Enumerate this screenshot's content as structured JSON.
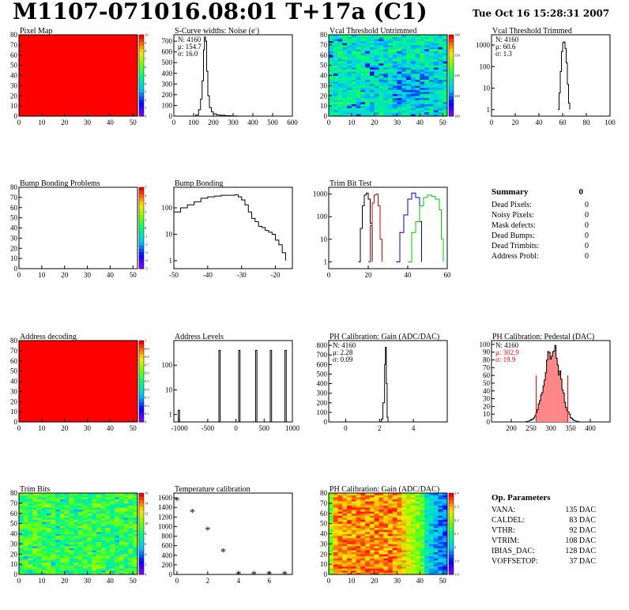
{
  "header": {
    "title": "M1107-071016.08:01 T+17a (C1)",
    "timestamp": "Tue Oct 16 15:28:31 2007"
  },
  "palette": {
    "red": "#ff0000",
    "line": "#000000",
    "trim_colors": [
      "#000000",
      "#cc0000",
      "#0000cc",
      "#00cc00"
    ],
    "stats_red": "#ff0000"
  },
  "chart_data": [
    {
      "id": "pixel-map",
      "type": "heatmap",
      "title": "Pixel Map",
      "fill": "uniform-red",
      "xlim": [
        0,
        52
      ],
      "ylim": [
        0,
        80
      ],
      "xticks": [
        0,
        10,
        20,
        30,
        40,
        50
      ],
      "yticks": [
        0,
        10,
        20,
        30,
        40,
        50,
        60,
        70,
        80
      ],
      "zticks": [
        "0",
        "1",
        "2",
        "3",
        "4",
        "5",
        "6",
        "7",
        "8",
        "9",
        "10"
      ]
    },
    {
      "id": "scurve-widths",
      "type": "histogram",
      "title": "S-Curve widths: Noise (e",
      "title_sup": "-",
      "title_end": ")",
      "xlim": [
        0,
        600
      ],
      "ylim": [
        0,
        760
      ],
      "xticks": [
        0,
        100,
        200,
        300,
        400,
        500,
        600
      ],
      "yticks": [
        0,
        100,
        200,
        300,
        400,
        500,
        600,
        700
      ],
      "stats": [
        "N: 4160",
        "μ: 154.7",
        "σ: 16.0"
      ],
      "points": [
        [
          90,
          0
        ],
        [
          110,
          10
        ],
        [
          125,
          60
        ],
        [
          135,
          160
        ],
        [
          143,
          330
        ],
        [
          150,
          620
        ],
        [
          155,
          740
        ],
        [
          160,
          700
        ],
        [
          166,
          420
        ],
        [
          172,
          190
        ],
        [
          180,
          80
        ],
        [
          190,
          40
        ],
        [
          200,
          22
        ],
        [
          215,
          12
        ],
        [
          235,
          8
        ],
        [
          260,
          5
        ],
        [
          290,
          2
        ],
        [
          320,
          0
        ]
      ]
    },
    {
      "id": "vcal-untrimmed",
      "type": "heatmap",
      "title": "Vcal Threshold Untrimmed",
      "fill": "noise-cyan",
      "xlim": [
        0,
        52
      ],
      "ylim": [
        0,
        80
      ],
      "xticks": [
        0,
        10,
        20,
        30,
        40,
        50
      ],
      "yticks": [
        0,
        10,
        20,
        30,
        40,
        50,
        60,
        70,
        80
      ],
      "zticks": [
        "100",
        "110",
        "120",
        "130",
        "140"
      ]
    },
    {
      "id": "vcal-trimmed",
      "type": "histogram",
      "title": "Vcal Threshold Trimmed",
      "scale": "log",
      "xlim": [
        0,
        100
      ],
      "ylim": [
        0.5,
        3000
      ],
      "xticks": [
        0,
        20,
        40,
        60,
        80,
        100
      ],
      "yticks": [
        1,
        10,
        100,
        1000
      ],
      "stats": [
        "N: 4160",
        "μ: 60.6",
        "σ: 1.3"
      ],
      "points": [
        [
          56,
          1
        ],
        [
          57,
          6
        ],
        [
          58,
          60
        ],
        [
          59,
          500
        ],
        [
          60,
          1300
        ],
        [
          61,
          1400
        ],
        [
          62,
          700
        ],
        [
          63,
          150
        ],
        [
          64,
          15
        ],
        [
          65,
          2
        ],
        [
          66,
          1
        ]
      ]
    },
    {
      "id": "bump-problems",
      "type": "heatmap",
      "title": "Bump Bonding Problems",
      "fill": "empty",
      "xlim": [
        0,
        52
      ],
      "ylim": [
        0,
        80
      ],
      "xticks": [
        0,
        10,
        20,
        30,
        40,
        50
      ],
      "yticks": [
        0,
        10,
        20,
        30,
        40,
        50,
        60,
        70,
        80
      ],
      "zticks": [
        "-5",
        "-4",
        "-3",
        "-2",
        "-1",
        "0",
        "1",
        "2",
        "3",
        "4",
        "5"
      ]
    },
    {
      "id": "bump-bonding",
      "type": "histogram",
      "title": "Bump Bonding",
      "scale": "log",
      "xlim": [
        -50,
        -15
      ],
      "ylim": [
        0.5,
        600
      ],
      "xticks": [
        -50,
        -40,
        -30,
        -20
      ],
      "yticks": [
        1,
        10,
        100
      ],
      "points": [
        [
          -50,
          70
        ],
        [
          -48,
          100
        ],
        [
          -46,
          130
        ],
        [
          -44,
          170
        ],
        [
          -42,
          230
        ],
        [
          -40,
          260
        ],
        [
          -38,
          280
        ],
        [
          -36,
          300
        ],
        [
          -34,
          300
        ],
        [
          -32,
          310
        ],
        [
          -31,
          260
        ],
        [
          -30,
          200
        ],
        [
          -29,
          130
        ],
        [
          -28,
          70
        ],
        [
          -27,
          40
        ],
        [
          -26,
          30
        ],
        [
          -25,
          20
        ],
        [
          -24,
          18
        ],
        [
          -23,
          14
        ],
        [
          -22,
          12
        ],
        [
          -21,
          10
        ],
        [
          -20,
          6
        ],
        [
          -19,
          4
        ],
        [
          -18,
          2
        ],
        [
          -17,
          1
        ]
      ]
    },
    {
      "id": "trim-bit-test",
      "type": "histogram",
      "title": "Trim Bit Test",
      "scale": "log",
      "xlim": [
        0,
        60
      ],
      "ylim": [
        0.5,
        2000
      ],
      "xticks": [
        0,
        20,
        40,
        60
      ],
      "yticks": [
        1,
        10,
        100,
        1000
      ],
      "series": [
        {
          "points": [
            [
              15,
              1
            ],
            [
              16,
              30
            ],
            [
              17,
              300
            ],
            [
              18,
              900
            ],
            [
              19,
              1100
            ],
            [
              20,
              600
            ],
            [
              21,
              50
            ],
            [
              22,
              1
            ]
          ]
        },
        {
          "points": [
            [
              20,
              1
            ],
            [
              21,
              40
            ],
            [
              22,
              400
            ],
            [
              23,
              900
            ],
            [
              24,
              1000
            ],
            [
              25,
              300
            ],
            [
              26,
              10
            ],
            [
              27,
              1
            ]
          ]
        },
        {
          "points": [
            [
              34,
              1
            ],
            [
              36,
              20
            ],
            [
              38,
              120
            ],
            [
              40,
              600
            ],
            [
              42,
              1100
            ],
            [
              44,
              700
            ],
            [
              46,
              60
            ],
            [
              47,
              1
            ]
          ]
        },
        {
          "points": [
            [
              40,
              1
            ],
            [
              42,
              20
            ],
            [
              44,
              60
            ],
            [
              46,
              300
            ],
            [
              48,
              700
            ],
            [
              50,
              900
            ],
            [
              52,
              800
            ],
            [
              54,
              600
            ],
            [
              56,
              200
            ],
            [
              57,
              10
            ],
            [
              58,
              1
            ]
          ]
        }
      ]
    },
    {
      "id": "address-decoding",
      "type": "heatmap",
      "title": "Address decoding",
      "fill": "uniform-red",
      "xlim": [
        0,
        52
      ],
      "ylim": [
        0,
        80
      ],
      "xticks": [
        0,
        10,
        20,
        30,
        40,
        50
      ],
      "yticks": [
        0,
        10,
        20,
        30,
        40,
        50,
        60,
        70,
        80
      ],
      "zticks": [
        "0",
        "0.1",
        "0.2",
        "0.3",
        "0.4",
        "0.5",
        "0.6",
        "0.7",
        "0.8",
        "0.9",
        "1"
      ]
    },
    {
      "id": "address-levels",
      "type": "histogram",
      "title": "Address Levels",
      "scale": "log",
      "xlim": [
        -1100,
        1000
      ],
      "ylim": [
        0.5,
        1000
      ],
      "xticks": [
        -1000,
        -500,
        0,
        500,
        1000
      ],
      "yticks": [
        1,
        10,
        100
      ],
      "peaks": [
        -1010,
        -290,
        60,
        360,
        620,
        880
      ],
      "peak_heights": [
        1.5,
        400,
        400,
        400,
        400,
        400
      ]
    },
    {
      "id": "ph-gain-hist",
      "type": "histogram",
      "title": "PH Calibration: Gain (ADC/DAC)",
      "xlim": [
        -1,
        6
      ],
      "ylim": [
        0,
        850
      ],
      "xticks": [
        0,
        2,
        4
      ],
      "yticks": [
        0,
        100,
        200,
        300,
        400,
        500,
        600,
        700,
        800
      ],
      "stats": [
        "N: 4160",
        "μ: 2.28",
        "σ: 0.09"
      ],
      "points": [
        [
          2.0,
          0
        ],
        [
          2.1,
          30
        ],
        [
          2.2,
          200
        ],
        [
          2.3,
          600
        ],
        [
          2.35,
          780
        ],
        [
          2.4,
          400
        ],
        [
          2.45,
          50
        ],
        [
          2.5,
          0
        ]
      ]
    },
    {
      "id": "ph-pedestal",
      "type": "histogram",
      "title": "PH Calibration: Pedestal (DAC)",
      "xlim": [
        150,
        450
      ],
      "ylim": [
        0,
        105
      ],
      "xticks": [
        200,
        250,
        300,
        350,
        400
      ],
      "yticks": [
        0,
        10,
        20,
        30,
        40,
        50,
        60,
        70,
        80,
        90,
        100
      ],
      "stats": [
        "N: 4160",
        "μ: 302.9",
        "σ: 19.9"
      ],
      "mean": 302.9,
      "sigma": 19.9,
      "cut_lines": [
        263,
        343
      ]
    },
    {
      "id": "trim-bits",
      "type": "heatmap",
      "title": "Trim Bits",
      "fill": "noise-green",
      "xlim": [
        0,
        52
      ],
      "ylim": [
        0,
        80
      ],
      "xticks": [
        0,
        10,
        20,
        30,
        40,
        50
      ],
      "yticks": [
        0,
        10,
        20,
        30,
        40,
        50,
        60,
        70,
        80
      ],
      "zticks": [
        "0",
        "2",
        "4",
        "6",
        "8",
        "10",
        "12",
        "14",
        "16"
      ]
    },
    {
      "id": "temperature-calibration",
      "type": "scatter",
      "title": "Temperature calibration",
      "xlim": [
        -0.2,
        7.5
      ],
      "ylim": [
        0,
        1700
      ],
      "xticks": [
        0,
        2,
        4,
        6
      ],
      "yticks": [
        0,
        200,
        400,
        600,
        800,
        1000,
        1200,
        1400,
        1600
      ],
      "points": [
        [
          0,
          1550
        ],
        [
          1,
          1300
        ],
        [
          2,
          930
        ],
        [
          3,
          480
        ],
        [
          4,
          10
        ],
        [
          5,
          10
        ],
        [
          6,
          10
        ],
        [
          7,
          10
        ]
      ]
    },
    {
      "id": "ph-gain-map",
      "type": "heatmap",
      "title": "PH Calibration: Gain (ADC/DAC)",
      "fill": "column-gradient",
      "xlim": [
        0,
        52
      ],
      "ylim": [
        0,
        80
      ],
      "xticks": [
        0,
        10,
        20,
        30,
        40,
        50
      ],
      "yticks": [
        0,
        10,
        20,
        30,
        40,
        50,
        60,
        70,
        80
      ],
      "zticks": [
        "1.8",
        "1.9",
        "2",
        "2.1",
        "2.2",
        "2.3",
        "2.4"
      ]
    }
  ],
  "summary": {
    "title": "Summary",
    "total": "0",
    "rows": [
      {
        "label": "Dead Pixels:",
        "value": "0"
      },
      {
        "label": "Noisy Pixels:",
        "value": "0"
      },
      {
        "label": "Mask defects:",
        "value": "0"
      },
      {
        "label": "Dead Bumps:",
        "value": "0"
      },
      {
        "label": "Dead Trimbits:",
        "value": "0"
      },
      {
        "label": "Address Probl:",
        "value": "0"
      }
    ]
  },
  "op_params": {
    "title": "Op. Parameters",
    "rows": [
      {
        "label": "VANA:",
        "value": "135 DAC"
      },
      {
        "label": "CALDEL:",
        "value": "83 DAC"
      },
      {
        "label": "VTHR:",
        "value": "92 DAC"
      },
      {
        "label": "VTRIM:",
        "value": "108 DAC"
      },
      {
        "label": "IBIAS_DAC:",
        "value": "128 DAC"
      },
      {
        "label": "VOFFSETOP:",
        "value": "37 DAC"
      }
    ]
  }
}
